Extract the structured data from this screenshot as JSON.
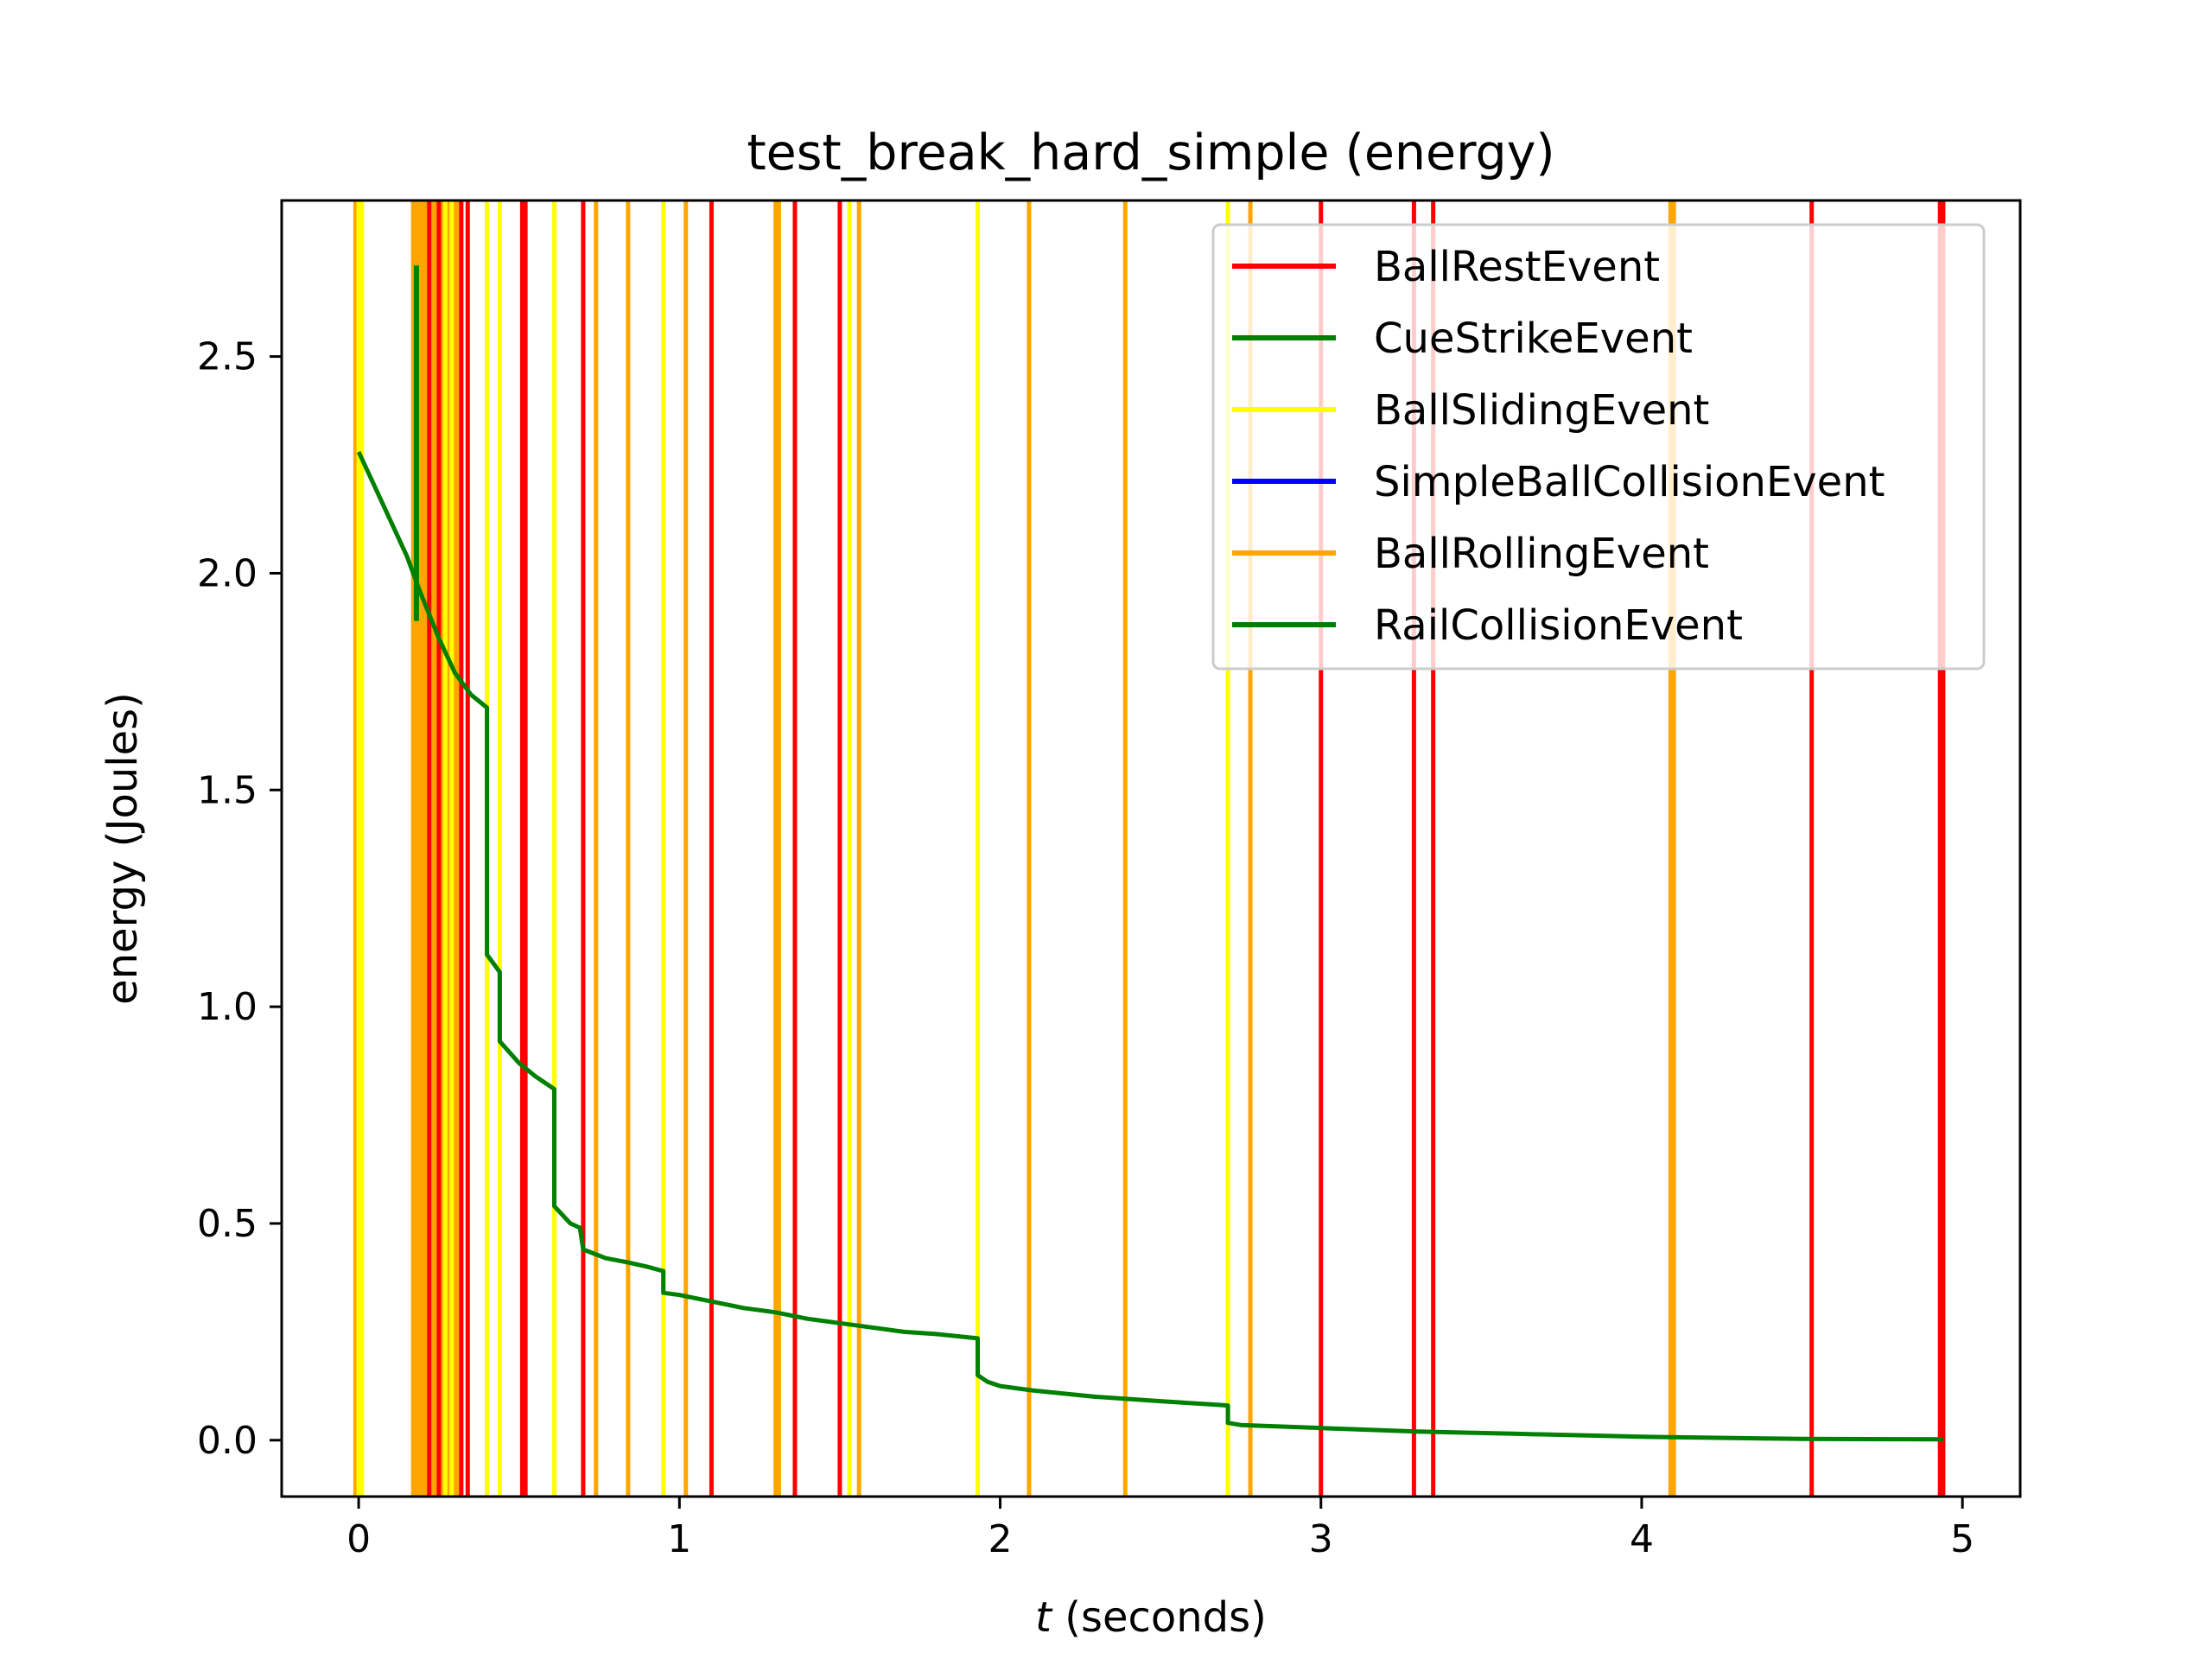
{
  "chart_data": {
    "type": "line",
    "title": "test_break_hard_simple (energy)",
    "xlabel_italic": "t",
    "xlabel_rest": " (seconds)",
    "ylabel": "energy (Joules)",
    "xlim": [
      -0.24,
      5.18
    ],
    "ylim": [
      -0.13,
      2.86
    ],
    "xticks": [
      0,
      1,
      2,
      3,
      4,
      5
    ],
    "yticks": [
      0.0,
      0.5,
      1.0,
      1.5,
      2.0,
      2.5
    ],
    "xtick_labels": [
      "0",
      "1",
      "2",
      "3",
      "4",
      "5"
    ],
    "ytick_labels": [
      "0.0",
      "0.5",
      "1.0",
      "1.5",
      "2.0",
      "2.5"
    ],
    "grid": false,
    "legend_position": "top-right",
    "legend": [
      {
        "name": "BallRestEvent",
        "color": "#ff0000"
      },
      {
        "name": "CueStrikeEvent",
        "color": "#008000"
      },
      {
        "name": "BallSlidingEvent",
        "color": "#ffff00"
      },
      {
        "name": "SimpleBallCollisionEvent",
        "color": "#0000ff"
      },
      {
        "name": "BallRollingEvent",
        "color": "#ffa500"
      },
      {
        "name": "RailCollisionEvent",
        "color": "#008000"
      }
    ],
    "event_lines": [
      {
        "name": "BallRollingEvent",
        "color": "#ffa500",
        "t": [
          -0.01,
          0.17,
          0.18,
          0.19,
          0.2,
          0.21,
          0.23,
          0.24,
          0.26,
          0.28,
          0.3,
          0.31,
          0.74,
          0.84,
          1.02,
          1.3,
          1.31,
          1.56,
          2.09,
          2.39,
          2.78,
          4.09,
          4.1
        ]
      },
      {
        "name": "BallSlidingEvent",
        "color": "#ffff00",
        "t": [
          0.0,
          0.01,
          0.27,
          0.29,
          0.4,
          0.44,
          0.61,
          0.95,
          1.53,
          1.93,
          2.71
        ]
      },
      {
        "name": "BallRestEvent",
        "color": "#ff0000",
        "t": [
          0.22,
          0.25,
          0.32,
          0.34,
          0.51,
          0.52,
          0.7,
          1.1,
          1.36,
          1.5,
          3.0,
          3.29,
          3.35,
          4.53,
          4.93,
          4.94
        ]
      }
    ],
    "cue_strike": {
      "name": "CueStrikeEvent",
      "t": 0.18,
      "y": [
        1.89,
        2.71
      ]
    },
    "series": [
      {
        "name": "RailCollisionEvent",
        "color": "#008000",
        "x": [
          0.0,
          0.05,
          0.1,
          0.15,
          0.19,
          0.25,
          0.3,
          0.35,
          0.4,
          0.4,
          0.44,
          0.44,
          0.5,
          0.55,
          0.61,
          0.61,
          0.66,
          0.69,
          0.7,
          0.77,
          0.84,
          0.9,
          0.95,
          0.95,
          1.0,
          1.1,
          1.2,
          1.3,
          1.4,
          1.5,
          1.6,
          1.7,
          1.8,
          1.93,
          1.93,
          1.96,
          2.0,
          2.1,
          2.3,
          2.5,
          2.71,
          2.71,
          2.75,
          3.0,
          3.3,
          3.6,
          4.0,
          4.5,
          4.94
        ],
        "y": [
          2.28,
          2.2,
          2.12,
          2.04,
          1.96,
          1.85,
          1.77,
          1.72,
          1.69,
          1.12,
          1.08,
          0.92,
          0.87,
          0.84,
          0.81,
          0.54,
          0.5,
          0.49,
          0.44,
          0.42,
          0.41,
          0.4,
          0.39,
          0.34,
          0.335,
          0.32,
          0.305,
          0.295,
          0.28,
          0.27,
          0.26,
          0.25,
          0.245,
          0.235,
          0.15,
          0.135,
          0.125,
          0.115,
          0.1,
          0.09,
          0.08,
          0.04,
          0.035,
          0.028,
          0.02,
          0.015,
          0.008,
          0.003,
          0.002
        ]
      }
    ]
  }
}
